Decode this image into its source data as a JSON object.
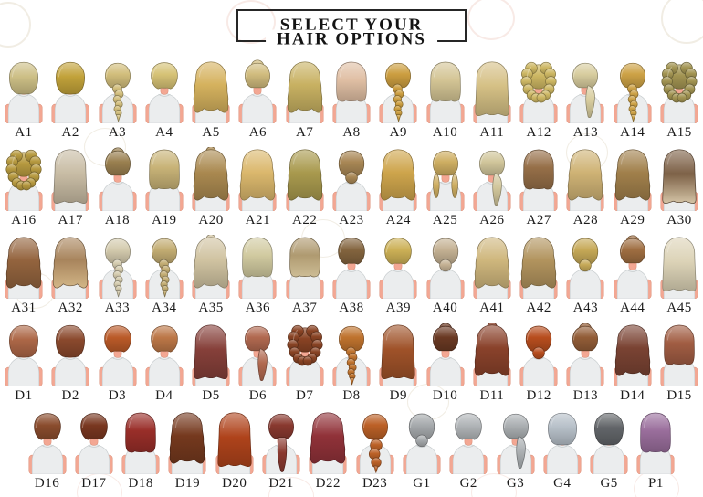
{
  "header": {
    "title_line1": "SELECT YOUR",
    "title_line2": "HAIR OPTIONS"
  },
  "colors": {
    "skin": "#f3a793",
    "skin_shadow": "#d88a72",
    "shirt": "#ebedee",
    "shirt_shadow": "#c6cbcd",
    "label_text": "#1b1b1b",
    "title_border": "#262626",
    "watermark": "#baa47a"
  },
  "rows": [
    {
      "name": "row-1",
      "items": [
        {
          "label": "A1",
          "type": "bob",
          "color": "#cdbf86"
        },
        {
          "label": "A2",
          "type": "bob",
          "color": "#c2a23a"
        },
        {
          "label": "A3",
          "type": "braid",
          "color": "#d2be7c"
        },
        {
          "label": "A4",
          "type": "short",
          "color": "#d6c276"
        },
        {
          "label": "A5",
          "type": "wavy",
          "color": "#d5b25e"
        },
        {
          "label": "A6",
          "type": "bunTop",
          "color": "#d1bc7e"
        },
        {
          "label": "A7",
          "type": "wavy",
          "color": "#c8b162"
        },
        {
          "label": "A8",
          "type": "lob",
          "color": "#e0bfa4"
        },
        {
          "label": "A9",
          "type": "braid",
          "color": "#cc9e40"
        },
        {
          "label": "A10",
          "type": "lob",
          "color": "#d4c595"
        },
        {
          "label": "A11",
          "type": "long",
          "color": "#d5c085"
        },
        {
          "label": "A12",
          "type": "curly",
          "color": "#cdb763"
        },
        {
          "label": "A13",
          "type": "ponySide",
          "color": "#d8cd9f"
        },
        {
          "label": "A14",
          "type": "braid",
          "color": "#cda246"
        },
        {
          "label": "A15",
          "type": "curly",
          "color": "#a29452"
        }
      ]
    },
    {
      "name": "row-2",
      "items": [
        {
          "label": "A16",
          "type": "curly",
          "color": "#b79a40"
        },
        {
          "label": "A17",
          "type": "long",
          "color": "#c8bca4"
        },
        {
          "label": "A18",
          "type": "bunTop",
          "color": "#9a8050"
        },
        {
          "label": "A19",
          "type": "lob",
          "color": "#c8b377"
        },
        {
          "label": "A20",
          "type": "halfUp",
          "color": "#aa8950"
        },
        {
          "label": "A21",
          "type": "wavy",
          "color": "#dbb86d"
        },
        {
          "label": "A22",
          "type": "wavy",
          "color": "#a99a4e"
        },
        {
          "label": "A23",
          "type": "bunLow",
          "color": "#a88755"
        },
        {
          "label": "A24",
          "type": "wavy",
          "color": "#cea54c"
        },
        {
          "label": "A25",
          "type": "pigtails",
          "color": "#ceae62"
        },
        {
          "label": "A26",
          "type": "ponySide",
          "color": "#d1c69b"
        },
        {
          "label": "A27",
          "type": "lob",
          "color": "#966f48"
        },
        {
          "label": "A28",
          "type": "wavy",
          "color": "#cfb375"
        },
        {
          "label": "A29",
          "type": "wavy",
          "color": "#a1804b"
        },
        {
          "label": "A30",
          "type": "long",
          "color": "#7d6147",
          "color2": "#d4c4a6"
        }
      ]
    },
    {
      "name": "row-3",
      "items": [
        {
          "label": "A31",
          "type": "wavy",
          "color": "#94643e"
        },
        {
          "label": "A32",
          "type": "wavy",
          "color": "#a8845c",
          "color2": "#d2b687"
        },
        {
          "label": "A33",
          "type": "braid",
          "color": "#d4cbae"
        },
        {
          "label": "A34",
          "type": "braid",
          "color": "#c3ad73"
        },
        {
          "label": "A35",
          "type": "halfUp",
          "color": "#d0c3a1"
        },
        {
          "label": "A36",
          "type": "lob",
          "color": "#d1caa0"
        },
        {
          "label": "A37",
          "type": "lob",
          "color": "#af9a70",
          "color2": "#cdbd96"
        },
        {
          "label": "A38",
          "type": "short",
          "color": "#83643e"
        },
        {
          "label": "A39",
          "type": "short",
          "color": "#ccb056"
        },
        {
          "label": "A40",
          "type": "bunLow",
          "color": "#c4b193"
        },
        {
          "label": "A41",
          "type": "wavy",
          "color": "#cfb77d"
        },
        {
          "label": "A42",
          "type": "wavy",
          "color": "#b2945e"
        },
        {
          "label": "A43",
          "type": "bunLow",
          "color": "#c6a957"
        },
        {
          "label": "A44",
          "type": "bunTop",
          "color": "#9f6e41"
        },
        {
          "label": "A45",
          "type": "long",
          "color": "#dcd3b7"
        }
      ]
    },
    {
      "name": "row-4",
      "items": [
        {
          "label": "D1",
          "type": "bob",
          "color": "#ac6747"
        },
        {
          "label": "D2",
          "type": "bob",
          "color": "#8a492d"
        },
        {
          "label": "D3",
          "type": "short",
          "color": "#ba5a28"
        },
        {
          "label": "D4",
          "type": "short",
          "color": "#bc7747"
        },
        {
          "label": "D5",
          "type": "long",
          "color": "#86403a"
        },
        {
          "label": "D6",
          "type": "ponySide",
          "color": "#b16950"
        },
        {
          "label": "D7",
          "type": "curly",
          "color": "#894324"
        },
        {
          "label": "D8",
          "type": "braid",
          "color": "#bf732e"
        },
        {
          "label": "D9",
          "type": "long",
          "color": "#9f5229"
        },
        {
          "label": "D10",
          "type": "bunTop",
          "color": "#6a3923"
        },
        {
          "label": "D11",
          "type": "halfUp",
          "color": "#8a422b"
        },
        {
          "label": "D12",
          "type": "bunLow",
          "color": "#b74d1e"
        },
        {
          "label": "D13",
          "type": "bunTop",
          "color": "#925d37"
        },
        {
          "label": "D14",
          "type": "wavy",
          "color": "#7a4333"
        },
        {
          "label": "D15",
          "type": "lob",
          "color": "#a15d43"
        }
      ]
    },
    {
      "name": "row-5",
      "items": [
        {
          "label": "D16",
          "type": "short",
          "color": "#8a4c2d"
        },
        {
          "label": "D17",
          "type": "short",
          "color": "#793720"
        },
        {
          "label": "D18",
          "type": "lob",
          "color": "#992e29"
        },
        {
          "label": "D19",
          "type": "wavy",
          "color": "#75391e"
        },
        {
          "label": "D20",
          "type": "long",
          "color": "#af431b"
        },
        {
          "label": "D21",
          "type": "ponyLow",
          "color": "#89392f"
        },
        {
          "label": "D22",
          "type": "wavy",
          "color": "#913239"
        },
        {
          "label": "D23",
          "type": "bubble",
          "color": "#bc6127"
        },
        {
          "label": "G1",
          "type": "bunLow",
          "color": "#a6aaad"
        },
        {
          "label": "G2",
          "type": "short",
          "color": "#b1b5b8"
        },
        {
          "label": "G3",
          "type": "ponySide",
          "color": "#adb1b4"
        },
        {
          "label": "G4",
          "type": "bob",
          "color": "#b6bfc8"
        },
        {
          "label": "G5",
          "type": "bob",
          "color": "#626569"
        },
        {
          "label": "P1",
          "type": "lob",
          "color": "#9a6e9c"
        }
      ]
    }
  ]
}
